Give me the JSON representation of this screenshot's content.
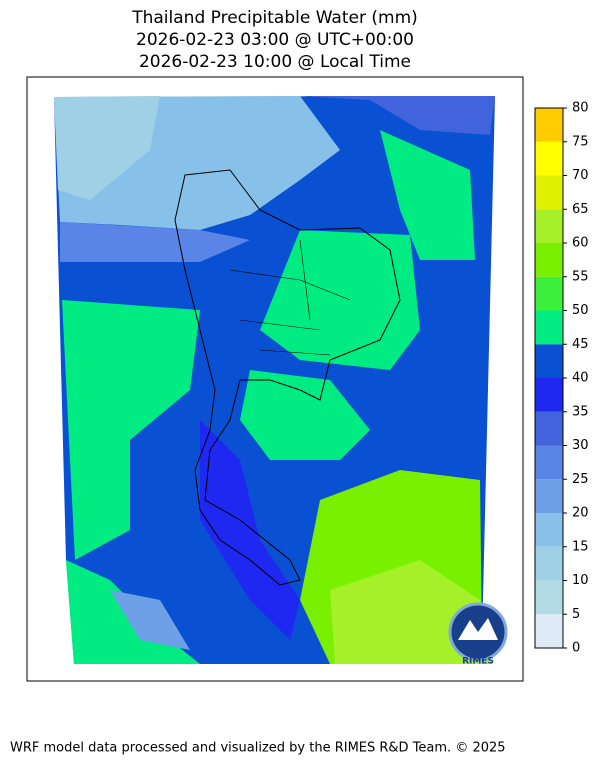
{
  "title": [
    "Thailand Precipitable Water (mm)",
    "2026-02-23 03:00 @ UTC+00:00",
    "2026-02-23 10:00 @ Local Time"
  ],
  "colorbar": {
    "lim": [
      0,
      80
    ],
    "ticks": [
      0,
      5,
      10,
      15,
      20,
      25,
      30,
      35,
      40,
      45,
      50,
      55,
      60,
      65,
      70,
      75,
      80
    ],
    "colors": [
      "#deebf7",
      "#b3dbe6",
      "#a0d0e6",
      "#87c0e8",
      "#6ea0e8",
      "#5a84e6",
      "#4164dc",
      "#1e28f0",
      "#0a50d2",
      "#00eb82",
      "#3cf03c",
      "#78f000",
      "#a5f028",
      "#dcf000",
      "#ffff00",
      "#ffcc00"
    ]
  },
  "logo": "RIMES",
  "footer": "WRF model data processed and visualized by the RIMES R&D Team. © 2025"
}
